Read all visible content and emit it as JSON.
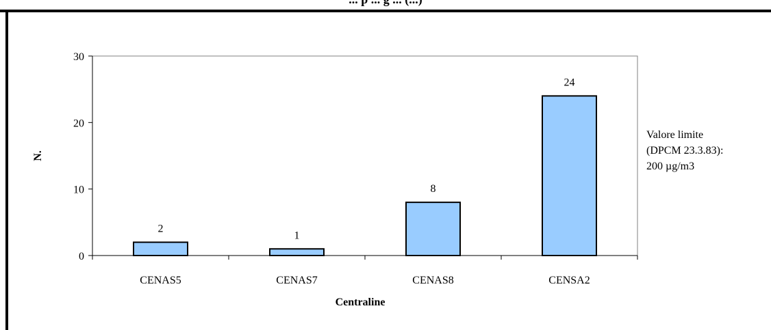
{
  "chart_data": {
    "type": "bar",
    "title": "",
    "title_partial": "... p ... g ... (...)",
    "categories": [
      "CENAS5",
      "CENAS7",
      "CENAS8",
      "CENSA2"
    ],
    "values": [
      2,
      1,
      8,
      24
    ],
    "xlabel": "Centraline",
    "ylabel": "N.",
    "ylim": [
      0,
      30
    ],
    "yticks": [
      0,
      10,
      20,
      30
    ],
    "grid": false,
    "bar_color": "#99ccff",
    "bar_edge_color": "#000000",
    "plot_border_color": "#808080",
    "frame_color": "#000000",
    "data_labels": [
      "2",
      "1",
      "8",
      "24"
    ],
    "annotation": [
      "Valore limite",
      "(DPCM 23.3.83):",
      "200 µg/m3"
    ]
  }
}
